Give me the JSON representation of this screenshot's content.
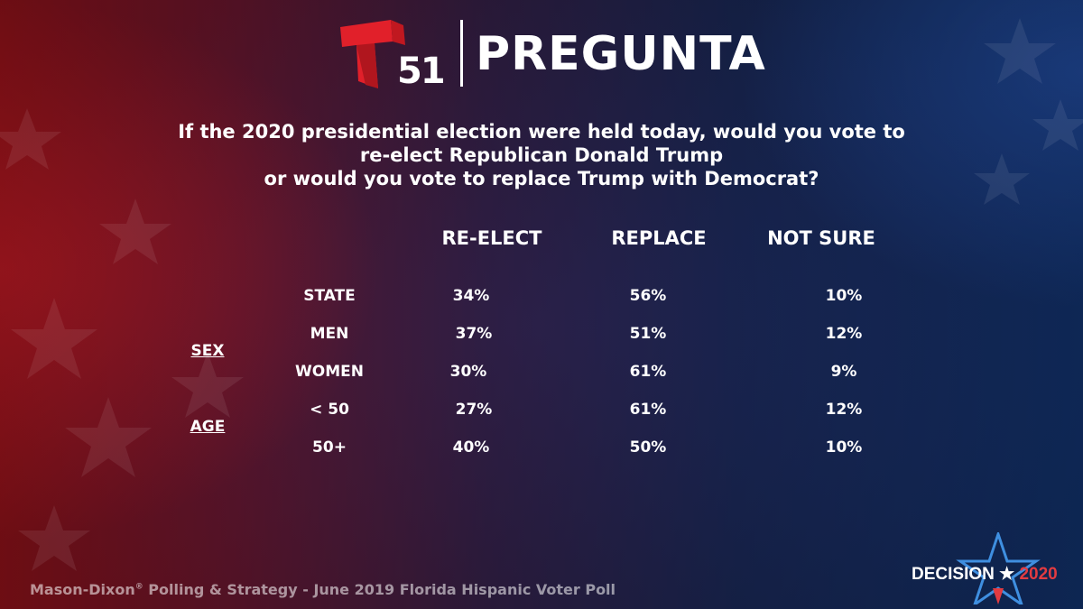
{
  "header": {
    "logo_number": "51",
    "title": "PREGUNTA"
  },
  "question": {
    "lines": [
      "If the 2020 presidential election were held today, would you vote to",
      "re-elect Republican Donald Trump",
      "or would you vote to replace Trump with Democrat?"
    ]
  },
  "chart_data": {
    "type": "table",
    "columns": [
      "RE-ELECT",
      "REPLACE",
      "NOT SURE"
    ],
    "groups": [
      {
        "label": "",
        "rows": [
          "STATE"
        ]
      },
      {
        "label": "SEX",
        "rows": [
          "MEN",
          "WOMEN"
        ]
      },
      {
        "label": "AGE",
        "rows": [
          "< 50",
          "50+"
        ]
      }
    ],
    "rows": [
      {
        "label": "STATE",
        "values": [
          "34%",
          "56%",
          "10%"
        ]
      },
      {
        "label": "MEN",
        "values": [
          "37%",
          "51%",
          "12%"
        ]
      },
      {
        "label": "WOMEN",
        "values": [
          "30%",
          "61%",
          "9%"
        ]
      },
      {
        "label": "< 50",
        "values": [
          "27%",
          "61%",
          "12%"
        ]
      },
      {
        "label": "50+",
        "values": [
          "40%",
          "50%",
          "10%"
        ]
      }
    ]
  },
  "footer": {
    "source_part1": "Mason-Dixon",
    "source_mark": "®",
    "source_part2": " Polling & Strategy - June 2019 Florida Hispanic Voter Poll",
    "badge_word": "DECISION",
    "badge_star": "★",
    "badge_year": "2020"
  },
  "colors": {
    "logo_red": "#e1202a",
    "badge_red": "#e23b41",
    "badge_blue": "#3f8fe0"
  }
}
